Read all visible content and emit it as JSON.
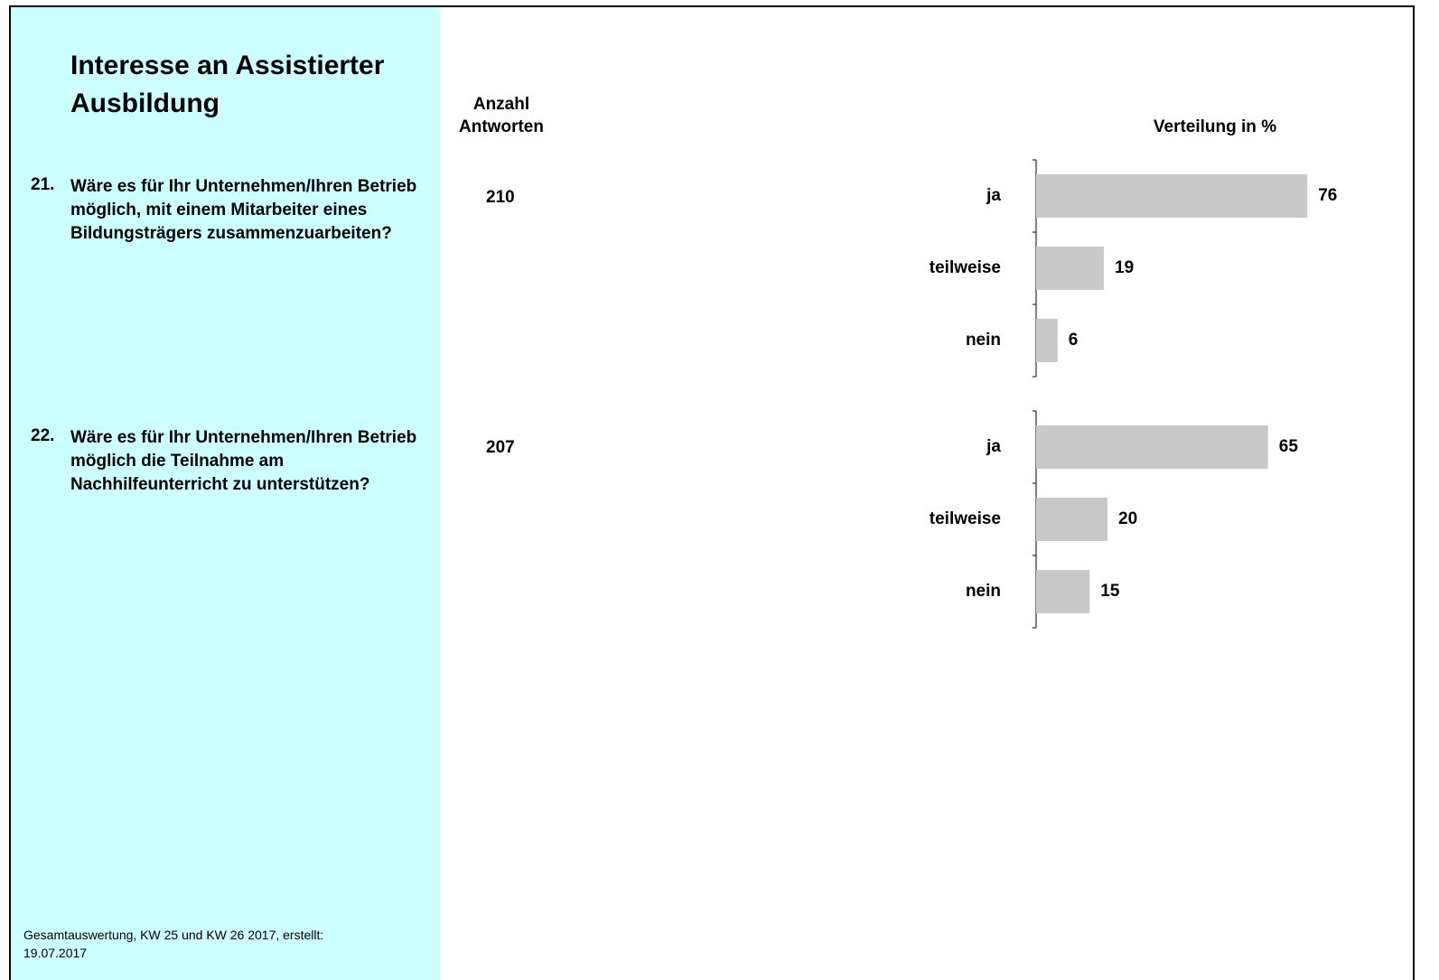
{
  "title": "Interesse an Assistierter Ausbildung",
  "count_header": "Anzahl Antworten",
  "distribution_header": "Verteilung in %",
  "questions": [
    {
      "number": "21.",
      "text": "Wäre es für Ihr Unternehmen/Ihren Betrieb möglich, mit einem Mitarbeiter eines Bildungsträgers zusammenzuarbeiten?",
      "count": 210
    },
    {
      "number": "22.",
      "text": "Wäre es für Ihr Unternehmen/Ihren Betrieb möglich die Teilnahme am Nachhilfeunterricht zu unterstützen?",
      "count": 207
    }
  ],
  "footer": "Gesamtauswertung, KW 25 und KW 26 2017, erstellt: 19.07.2017",
  "chart_data": [
    {
      "type": "bar",
      "orientation": "horizontal",
      "categories": [
        "ja",
        "teilweise",
        "nein"
      ],
      "values": [
        76,
        19,
        6
      ],
      "color": "#c8c8c8",
      "xlim": [
        0,
        100
      ]
    },
    {
      "type": "bar",
      "orientation": "horizontal",
      "categories": [
        "ja",
        "teilweise",
        "nein"
      ],
      "values": [
        65,
        20,
        15
      ],
      "color": "#c8c8c8",
      "xlim": [
        0,
        100
      ]
    }
  ]
}
